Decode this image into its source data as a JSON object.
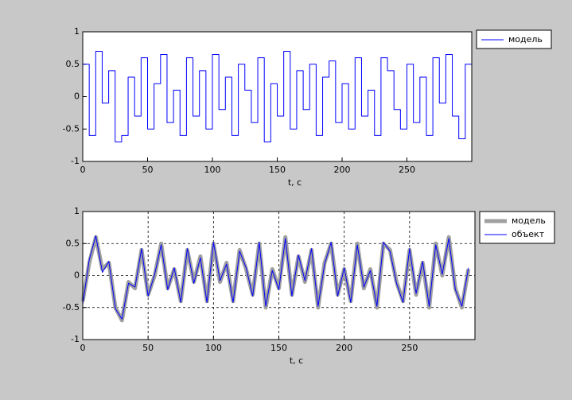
{
  "chart_data": [
    {
      "type": "line",
      "step": true,
      "grid": false,
      "legend": "outside-right",
      "xlabel": "t, c",
      "xlim": [
        0,
        300
      ],
      "ylim": [
        -1,
        1
      ],
      "xticks": [
        0,
        50,
        100,
        150,
        200,
        250
      ],
      "yticks": [
        -1,
        -0.5,
        0,
        0.5,
        1
      ],
      "x": [
        0,
        5,
        10,
        15,
        20,
        25,
        30,
        35,
        40,
        45,
        50,
        55,
        60,
        65,
        70,
        75,
        80,
        85,
        90,
        95,
        100,
        105,
        110,
        115,
        120,
        125,
        130,
        135,
        140,
        145,
        150,
        155,
        160,
        165,
        170,
        175,
        180,
        185,
        190,
        195,
        200,
        205,
        210,
        215,
        220,
        225,
        230,
        235,
        240,
        245,
        250,
        255,
        260,
        265,
        270,
        275,
        280,
        285,
        290,
        295
      ],
      "series": [
        {
          "name": "модель",
          "color": "#0000ff",
          "width": 1,
          "values": [
            0.5,
            -0.6,
            0.7,
            -0.1,
            0.4,
            -0.7,
            -0.6,
            0.3,
            -0.3,
            0.6,
            -0.5,
            0.2,
            0.65,
            -0.4,
            0.1,
            -0.6,
            0.6,
            -0.3,
            0.4,
            -0.5,
            0.65,
            -0.2,
            0.3,
            -0.6,
            0.5,
            0.1,
            -0.4,
            0.6,
            -0.7,
            0.2,
            -0.3,
            0.7,
            -0.5,
            0.4,
            -0.2,
            0.5,
            -0.6,
            0.3,
            0.55,
            -0.4,
            0.2,
            -0.5,
            0.6,
            -0.3,
            0.1,
            -0.6,
            0.6,
            0.4,
            -0.2,
            -0.5,
            0.5,
            -0.4,
            0.3,
            -0.6,
            0.6,
            -0.1,
            0.65,
            -0.3,
            -0.65,
            0.5
          ]
        }
      ]
    },
    {
      "type": "line",
      "step": false,
      "grid": true,
      "legend": "outside-right",
      "xlabel": "t, c",
      "xlim": [
        0,
        300
      ],
      "ylim": [
        -1,
        1
      ],
      "xticks": [
        0,
        50,
        100,
        150,
        200,
        250
      ],
      "yticks": [
        -1,
        -0.5,
        0,
        0.5,
        1
      ],
      "x": [
        0,
        5,
        10,
        15,
        20,
        25,
        30,
        35,
        40,
        45,
        50,
        55,
        60,
        65,
        70,
        75,
        80,
        85,
        90,
        95,
        100,
        105,
        110,
        115,
        120,
        125,
        130,
        135,
        140,
        145,
        150,
        155,
        160,
        165,
        170,
        175,
        180,
        185,
        190,
        195,
        200,
        205,
        210,
        215,
        220,
        225,
        230,
        235,
        240,
        245,
        250,
        255,
        260,
        265,
        270,
        275,
        280,
        285,
        290,
        295
      ],
      "series": [
        {
          "name": "модель",
          "color": "#a0a0a0",
          "width": 5,
          "values": [
            -0.4,
            0.2,
            0.6,
            0.1,
            0.2,
            -0.5,
            -0.7,
            -0.1,
            -0.2,
            0.4,
            -0.3,
            0.0,
            0.5,
            -0.2,
            0.1,
            -0.4,
            0.4,
            -0.1,
            0.3,
            -0.4,
            0.5,
            -0.1,
            0.2,
            -0.4,
            0.4,
            0.1,
            -0.3,
            0.5,
            -0.5,
            0.1,
            -0.2,
            0.6,
            -0.3,
            0.3,
            -0.1,
            0.4,
            -0.5,
            0.2,
            0.5,
            -0.3,
            0.1,
            -0.4,
            0.5,
            -0.2,
            0.1,
            -0.5,
            0.5,
            0.4,
            -0.1,
            -0.4,
            0.4,
            -0.3,
            0.2,
            -0.5,
            0.5,
            0.0,
            0.6,
            -0.2,
            -0.5,
            0.1
          ]
        },
        {
          "name": "объект",
          "color": "#0000ff",
          "width": 1,
          "values": [
            -0.45,
            0.25,
            0.62,
            0.05,
            0.22,
            -0.52,
            -0.68,
            -0.12,
            -0.18,
            0.42,
            -0.32,
            0.02,
            0.48,
            -0.22,
            0.12,
            -0.42,
            0.42,
            -0.12,
            0.28,
            -0.42,
            0.52,
            -0.08,
            0.18,
            -0.42,
            0.38,
            0.12,
            -0.32,
            0.52,
            -0.48,
            0.08,
            -0.22,
            0.58,
            -0.32,
            0.32,
            -0.08,
            0.42,
            -0.48,
            0.18,
            0.52,
            -0.32,
            0.12,
            -0.42,
            0.48,
            -0.18,
            0.08,
            -0.48,
            0.52,
            0.38,
            -0.12,
            -0.42,
            0.42,
            -0.28,
            0.22,
            -0.48,
            0.48,
            0.02,
            0.58,
            -0.22,
            -0.48,
            0.12
          ]
        }
      ]
    }
  ]
}
